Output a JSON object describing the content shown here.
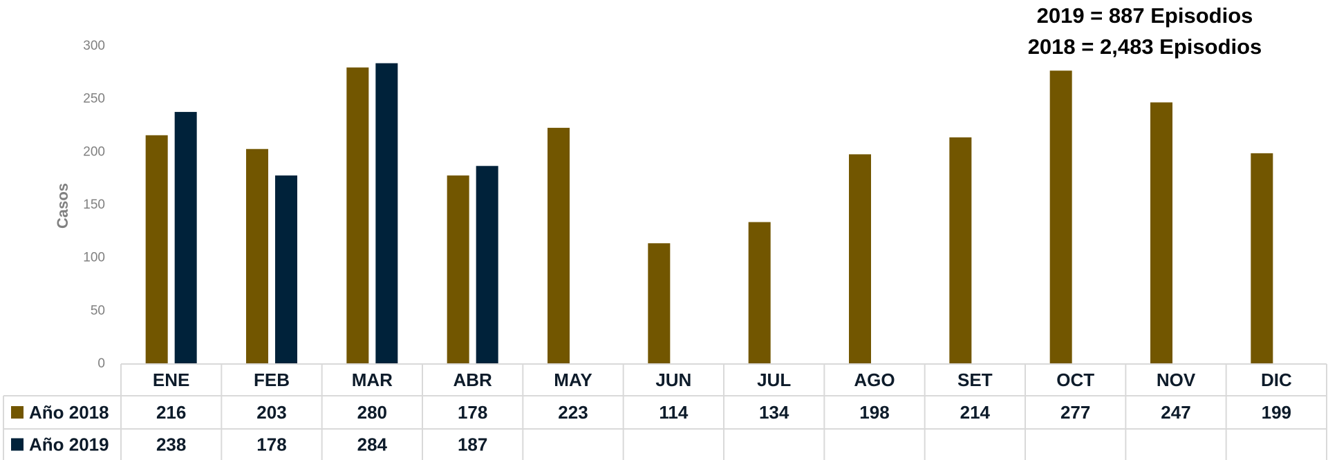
{
  "chart_data": {
    "type": "bar",
    "annotations": [
      "2019 = 887 Episodios",
      "2018 = 2,483 Episodios"
    ],
    "ylabel": "Casos",
    "categories": [
      "ENE",
      "FEB",
      "MAR",
      "ABR",
      "MAY",
      "JUN",
      "JUL",
      "AGO",
      "SET",
      "OCT",
      "NOV",
      "DIC"
    ],
    "series": [
      {
        "name": "Año 2018",
        "color": "#725600",
        "values": [
          216,
          203,
          280,
          178,
          223,
          114,
          134,
          198,
          214,
          277,
          247,
          199
        ]
      },
      {
        "name": "Año 2019",
        "color": "#00223a",
        "values": [
          238,
          178,
          284,
          187,
          null,
          null,
          null,
          null,
          null,
          null,
          null,
          null
        ]
      }
    ],
    "ylim": [
      0,
      300
    ],
    "yticks": [
      0,
      50,
      100,
      150,
      200,
      250,
      300
    ],
    "grid": false,
    "data_table": true
  }
}
